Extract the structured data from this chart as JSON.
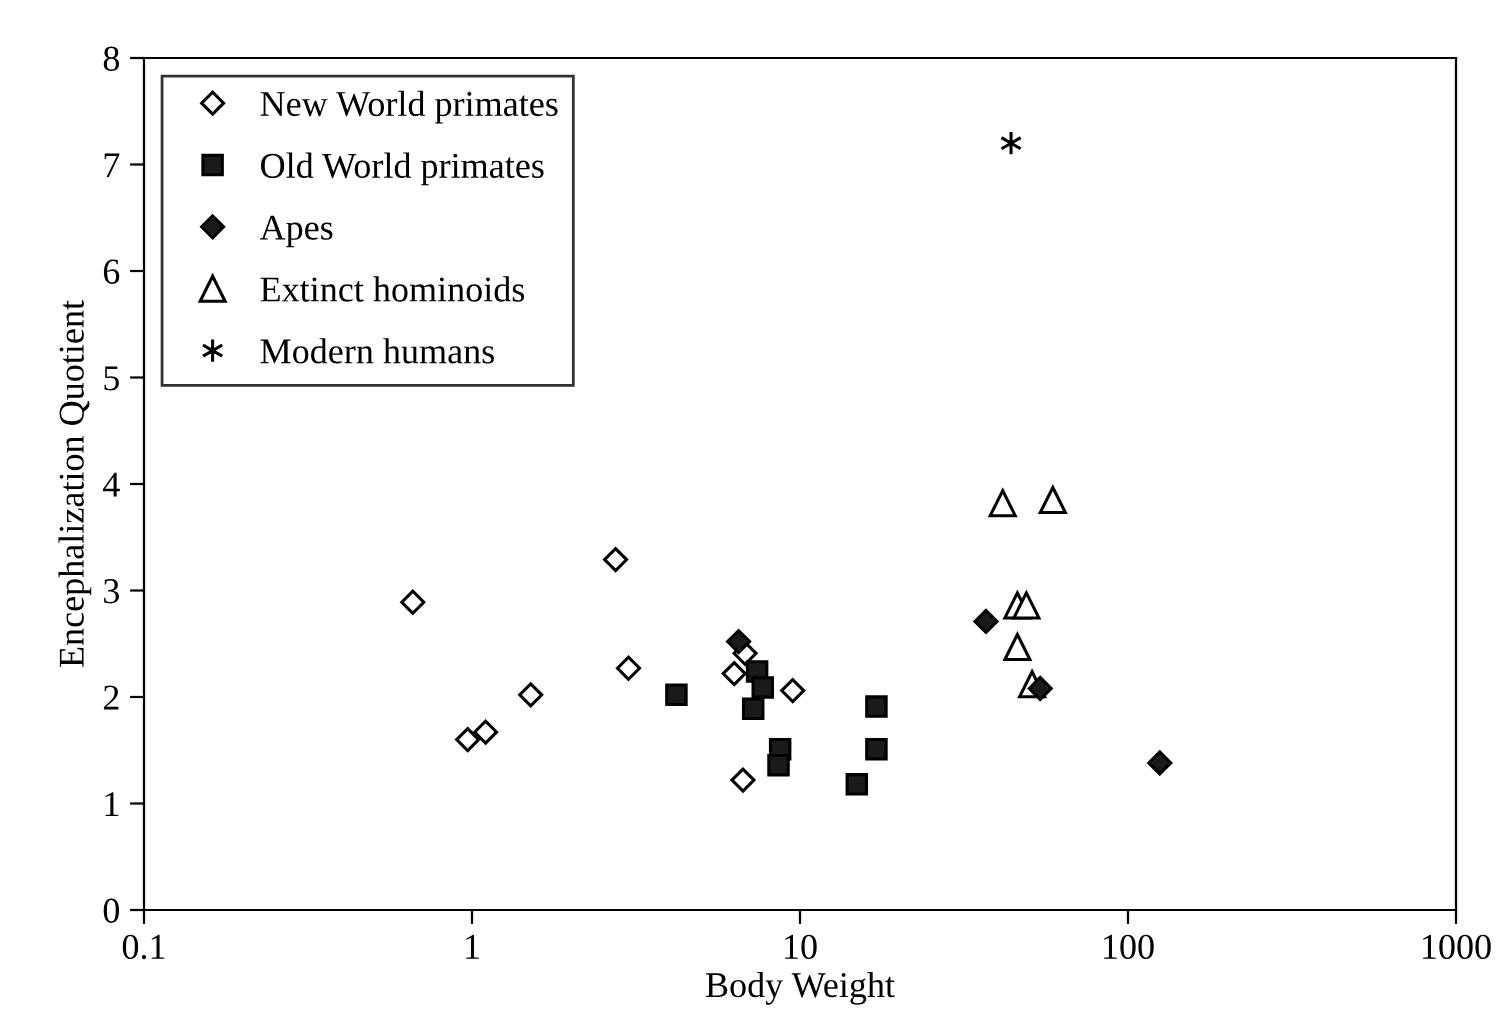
{
  "chart_data": {
    "type": "scatter",
    "xlabel": "Body Weight",
    "ylabel": "Encephalization Quotient",
    "log": "x",
    "xlim": [
      0.1,
      1000
    ],
    "ylim": [
      0,
      8
    ],
    "xticks": [
      0.1,
      1,
      10,
      100,
      1000
    ],
    "yticks": [
      0,
      1,
      2,
      3,
      4,
      5,
      6,
      7,
      8
    ],
    "grid": false,
    "legend": "top left",
    "series": [
      {
        "name": "New World primates",
        "marker": "diamond",
        "color": "#ffffff",
        "x": [
          0.66,
          0.97,
          1.1,
          1.51,
          2.74,
          3.0,
          6.3,
          6.8,
          9.5,
          6.7
        ],
        "values": [
          2.89,
          1.6,
          1.67,
          2.02,
          3.29,
          2.27,
          2.22,
          2.41,
          2.06,
          1.22
        ]
      },
      {
        "name": "Old World primates",
        "marker": "square",
        "color": "#1a1a1a",
        "x": [
          4.2,
          7.4,
          7.7,
          7.2,
          8.7,
          8.6,
          14.9,
          17.1,
          17.1
        ],
        "values": [
          2.02,
          2.24,
          2.09,
          1.89,
          1.51,
          1.36,
          1.18,
          1.91,
          1.51
        ]
      },
      {
        "name": "Apes",
        "marker": "diamond",
        "color": "#1a1a1a",
        "x": [
          6.5,
          36.9,
          54,
          125
        ],
        "values": [
          2.52,
          2.71,
          2.08,
          1.38
        ]
      },
      {
        "name": "Extinct hominoids",
        "marker": "triangle",
        "color": "#ffffff",
        "x": [
          41.5,
          59,
          46,
          49,
          46,
          51
        ],
        "values": [
          3.82,
          3.85,
          2.86,
          2.86,
          2.47,
          2.12
        ]
      },
      {
        "name": "Modern humans",
        "marker": "cross",
        "color": "#000000",
        "x": [
          44
        ],
        "values": [
          7.2
        ]
      }
    ]
  }
}
